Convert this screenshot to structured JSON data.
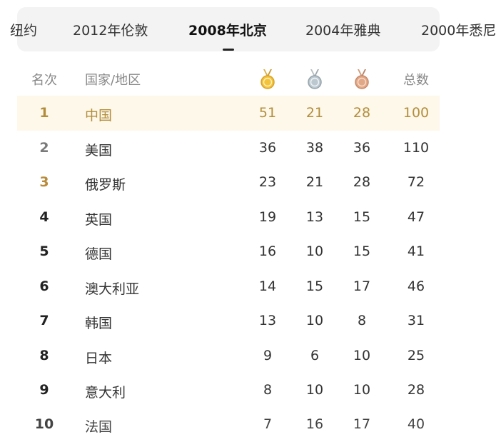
{
  "tabs": [
    {
      "label": "纽约",
      "active": false
    },
    {
      "label": "2012年伦敦",
      "active": false
    },
    {
      "label": "2008年北京",
      "active": true
    },
    {
      "label": "2004年雅典",
      "active": false
    },
    {
      "label": "2000年悉尼",
      "active": false
    }
  ],
  "header": {
    "rank": "名次",
    "country": "国家/地区",
    "gold_icon": "gold-medal-icon",
    "silver_icon": "silver-medal-icon",
    "bronze_icon": "bronze-medal-icon",
    "total": "总数"
  },
  "rows": [
    {
      "rank": "1",
      "country": "中国",
      "gold": "51",
      "silver": "21",
      "bronze": "28",
      "total": "100"
    },
    {
      "rank": "2",
      "country": "美国",
      "gold": "36",
      "silver": "38",
      "bronze": "36",
      "total": "110"
    },
    {
      "rank": "3",
      "country": "俄罗斯",
      "gold": "23",
      "silver": "21",
      "bronze": "28",
      "total": "72"
    },
    {
      "rank": "4",
      "country": "英国",
      "gold": "19",
      "silver": "13",
      "bronze": "15",
      "total": "47"
    },
    {
      "rank": "5",
      "country": "德国",
      "gold": "16",
      "silver": "10",
      "bronze": "15",
      "total": "41"
    },
    {
      "rank": "6",
      "country": "澳大利亚",
      "gold": "14",
      "silver": "15",
      "bronze": "17",
      "total": "46"
    },
    {
      "rank": "7",
      "country": "韩国",
      "gold": "13",
      "silver": "10",
      "bronze": "8",
      "total": "31"
    },
    {
      "rank": "8",
      "country": "日本",
      "gold": "9",
      "silver": "6",
      "bronze": "10",
      "total": "25"
    },
    {
      "rank": "9",
      "country": "意大利",
      "gold": "8",
      "silver": "10",
      "bronze": "10",
      "total": "28"
    },
    {
      "rank": "10",
      "country": "法国",
      "gold": "7",
      "silver": "16",
      "bronze": "17",
      "total": "40"
    }
  ],
  "colors": {
    "gold": "#f3c33c",
    "silver": "#bcc8d0",
    "bronze": "#e0a887",
    "highlight_bg": "#fdf8ea",
    "highlight_text": "#b38d3b"
  }
}
